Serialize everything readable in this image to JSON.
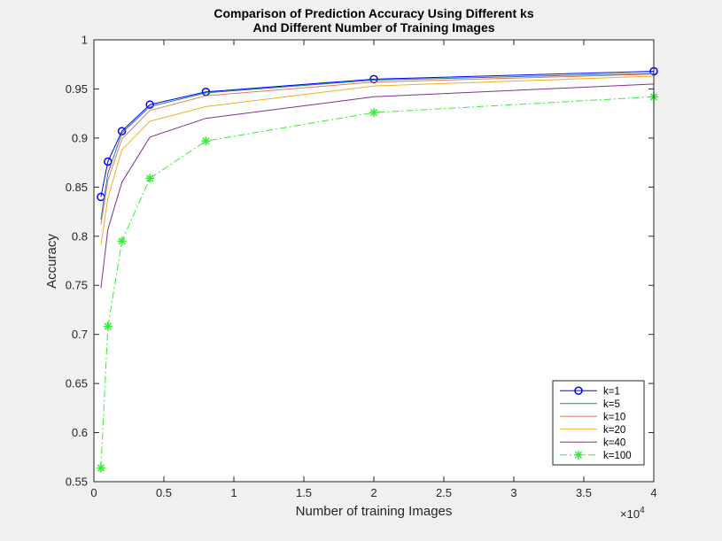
{
  "chart_data": {
    "type": "line",
    "title": [
      "Comparison of Prediction Accuracy Using Different ks",
      "And Different Number of Training Images"
    ],
    "xlabel": "Number of training Images",
    "ylabel": "Accuracy",
    "x_exponent_label": "×10",
    "x_exponent_power": "4",
    "xlim": [
      0,
      40000
    ],
    "ylim": [
      0.55,
      1
    ],
    "xticks": [
      0,
      5000,
      10000,
      15000,
      20000,
      25000,
      30000,
      35000,
      40000
    ],
    "xtick_labels": [
      "0",
      "0.5",
      "1",
      "1.5",
      "2",
      "2.5",
      "3",
      "3.5",
      "4"
    ],
    "yticks": [
      0.55,
      0.6,
      0.65,
      0.7,
      0.75,
      0.8,
      0.85,
      0.9,
      0.95,
      1
    ],
    "ytick_labels": [
      "0.55",
      "0.6",
      "0.65",
      "0.7",
      "0.75",
      "0.8",
      "0.85",
      "0.9",
      "0.95",
      "1"
    ],
    "grid": false,
    "legend_position": "bottom-right",
    "x": [
      500,
      1000,
      2000,
      4000,
      8000,
      20000,
      40000
    ],
    "series": [
      {
        "name": "k=1",
        "values": [
          0.84,
          0.876,
          0.907,
          0.934,
          0.947,
          0.96,
          0.968
        ],
        "color": "#0000ff",
        "dash": "",
        "marker": "circle"
      },
      {
        "name": "k=5",
        "values": [
          0.817,
          0.864,
          0.905,
          0.932,
          0.946,
          0.959,
          0.966
        ],
        "color": "#1a7f99",
        "dash": "",
        "marker": "none"
      },
      {
        "name": "k=10",
        "values": [
          0.812,
          0.857,
          0.899,
          0.928,
          0.943,
          0.957,
          0.965
        ],
        "color": "#e8765a",
        "dash": "",
        "marker": "none"
      },
      {
        "name": "k=20",
        "values": [
          0.791,
          0.839,
          0.888,
          0.917,
          0.932,
          0.953,
          0.963
        ],
        "color": "#edb120",
        "dash": "",
        "marker": "none"
      },
      {
        "name": "k=40",
        "values": [
          0.747,
          0.807,
          0.855,
          0.901,
          0.92,
          0.942,
          0.955
        ],
        "color": "#7e2f8e",
        "dash": "",
        "marker": "none"
      },
      {
        "name": "k=100",
        "values": [
          0.564,
          0.708,
          0.795,
          0.859,
          0.897,
          0.926,
          0.942
        ],
        "color": "#33ee33",
        "dash": "8 3 2 3",
        "marker": "star"
      }
    ]
  }
}
